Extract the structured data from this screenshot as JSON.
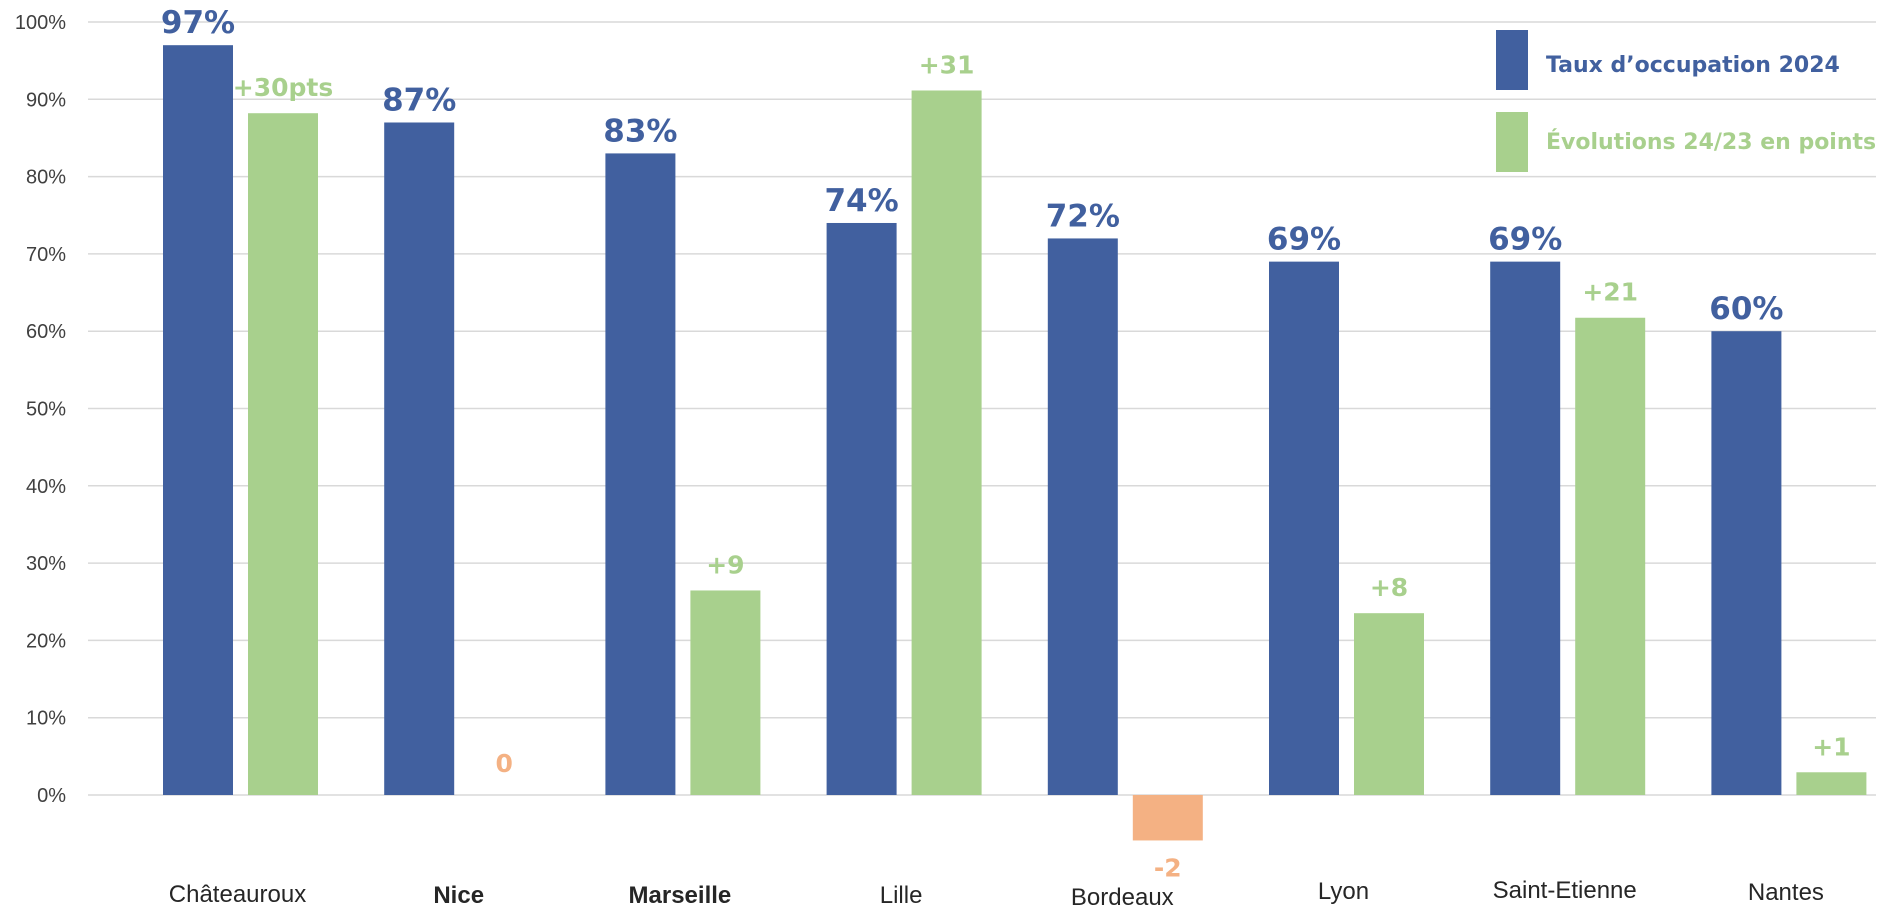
{
  "chart_data": {
    "type": "bar",
    "categories": [
      "Châteauroux",
      "Nice",
      "Marseille",
      "Lille",
      "Bordeaux",
      "Lyon",
      "Saint-Etienne",
      "Nantes"
    ],
    "bold_categories": [
      "Nice",
      "Marseille"
    ],
    "ylim": [
      0,
      100
    ],
    "yticks": [
      0,
      10,
      20,
      30,
      40,
      50,
      60,
      70,
      80,
      90,
      100
    ],
    "ytick_labels": [
      "0%",
      "10%",
      "20%",
      "30%",
      "40%",
      "50%",
      "60%",
      "70%",
      "80%",
      "90%",
      "100%"
    ],
    "grid": true,
    "legend_position": "top-right",
    "series": [
      {
        "name": "Taux d’occupation 2024",
        "color": "#41609f",
        "values": [
          97,
          87,
          83,
          74,
          72,
          69,
          69,
          60
        ],
        "labels": [
          "97%",
          "87%",
          "83%",
          "74%",
          "72%",
          "69%",
          "69%",
          "60%"
        ]
      },
      {
        "name": "Évolutions 24/23 en points",
        "color": "#a8d08d",
        "negative_color": "#f4b183",
        "values": [
          30,
          0,
          9,
          31,
          -2,
          8,
          21,
          1
        ],
        "labels": [
          "+30pts",
          "0",
          "+9",
          "+31",
          "-2",
          "+8",
          "+21",
          "+1"
        ]
      }
    ]
  }
}
